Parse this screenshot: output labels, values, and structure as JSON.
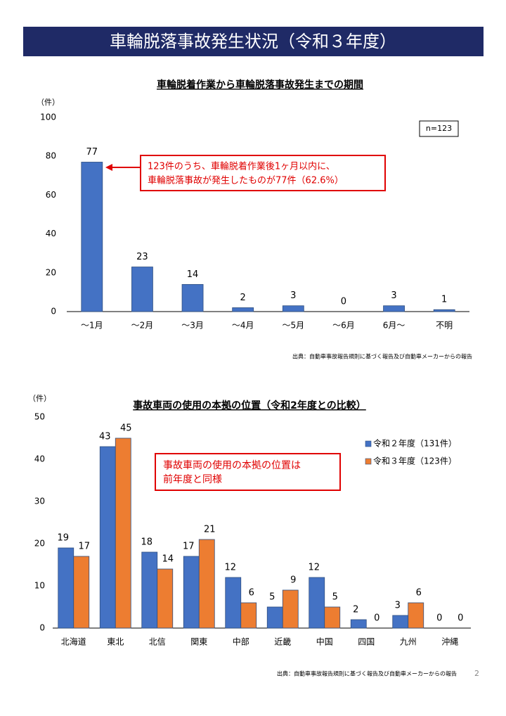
{
  "header": {
    "title": "車輪脱落事故発生状況（令和３年度）"
  },
  "page_number": 2,
  "chart_data": [
    {
      "type": "bar",
      "title": "車輪脱着作業から車輪脱落事故発生までの期間",
      "y_label": "（件）",
      "categories": [
        "～1月",
        "～2月",
        "～3月",
        "～4月",
        "～5月",
        "～6月",
        "6月～",
        "不明"
      ],
      "values": [
        77,
        23,
        14,
        2,
        3,
        0,
        3,
        1
      ],
      "color": "#4472c4",
      "ylim": [
        0,
        100
      ],
      "yticks": [
        0,
        20,
        40,
        60,
        80,
        100
      ],
      "note": "n=123",
      "callout": [
        "123件のうち、車輪脱着作業後1ヶ月以内に、",
        "車輪脱落事故が発生したものが77件（62.6%）"
      ],
      "source": "出典：自動車事故報告規則に基づく報告及び自動車メーカーからの報告"
    },
    {
      "type": "bar",
      "title": "事故車両の使用の本拠の位置（令和2年度との比較）",
      "y_label": "（件）",
      "categories": [
        "北海道",
        "東北",
        "北信",
        "関東",
        "中部",
        "近畿",
        "中国",
        "四国",
        "九州",
        "沖縄"
      ],
      "series": [
        {
          "name": "令和２年度（131件）",
          "color": "#4472c4",
          "values": [
            19,
            43,
            18,
            17,
            12,
            5,
            12,
            2,
            3,
            0
          ]
        },
        {
          "name": "令和３年度（123件）",
          "color": "#ed7d31",
          "values": [
            17,
            45,
            14,
            21,
            6,
            9,
            5,
            0,
            6,
            0
          ]
        }
      ],
      "ylim": [
        0,
        50
      ],
      "yticks": [
        0,
        10,
        20,
        30,
        40,
        50
      ],
      "callout": [
        "事故車両の使用の本拠の位置は",
        "前年度と同様"
      ],
      "source": "出典：自動車事故報告規則に基づく報告及び自動車メーカーからの報告"
    }
  ]
}
